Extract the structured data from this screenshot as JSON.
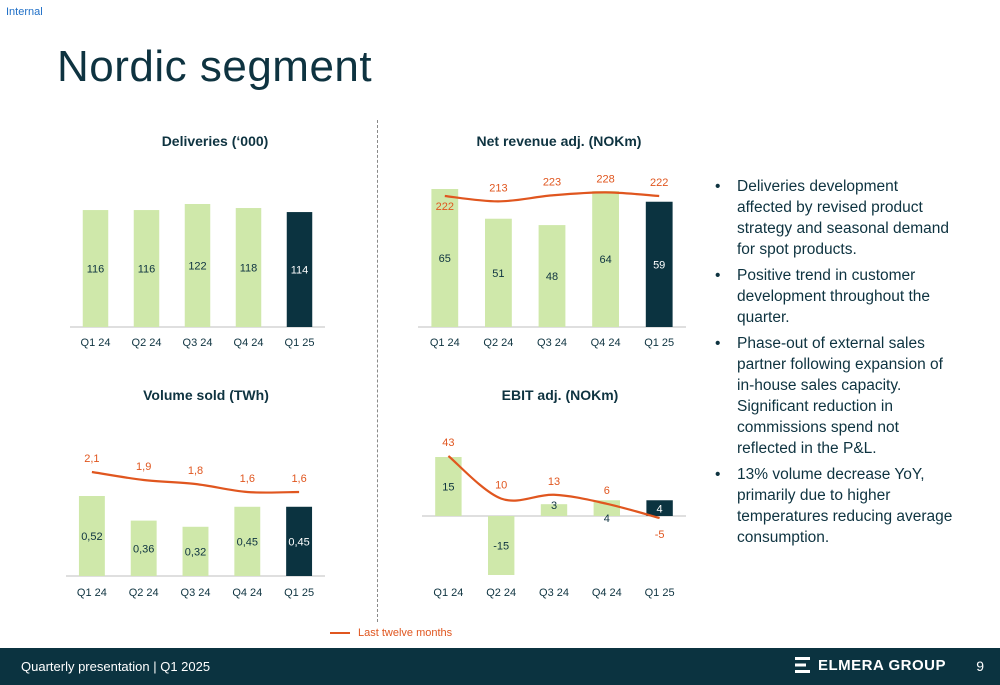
{
  "header": {
    "tag": "Internal",
    "title": "Nordic segment"
  },
  "colors": {
    "bar": "#cfe8aa",
    "bar_current": "#0b3340",
    "line": "#e0561f",
    "text": "#0e3340"
  },
  "legend": {
    "label": "Last twelve months"
  },
  "bullets": [
    "Deliveries development affected by revised product strategy and seasonal demand for spot products.",
    "Positive trend in customer development throughout the quarter.",
    "Phase-out of external sales partner following expansion of in-house sales capacity. Significant reduction in commissions spend not reflected in the P&L.",
    "13% volume decrease YoY, primarily due to higher temperatures reducing average consumption."
  ],
  "footer": {
    "left_text": "Quarterly presentation | Q1 2025",
    "brand": "ELMERA GROUP",
    "page": "9"
  },
  "chart_data": [
    {
      "type": "bar",
      "title": "Deliveries (‘000)",
      "categories": [
        "Q1 24",
        "Q2 24",
        "Q3 24",
        "Q4 24",
        "Q1 25"
      ],
      "series": [
        {
          "values": [
            116,
            116,
            122,
            118,
            114
          ],
          "labels": [
            "116",
            "116",
            "122",
            "118",
            "114"
          ]
        }
      ]
    },
    {
      "type": "bar",
      "title": "Net revenue adj. (NOKm)",
      "categories": [
        "Q1 24",
        "Q2 24",
        "Q3 24",
        "Q4 24",
        "Q1 25"
      ],
      "series": [
        {
          "values": [
            65,
            51,
            48,
            64,
            59
          ],
          "labels": [
            "65",
            "51",
            "48",
            "64",
            "59"
          ]
        },
        {
          "name": "Last twelve months",
          "type": "line",
          "values": [
            222,
            213,
            223,
            228,
            222
          ],
          "labels": [
            "222",
            "213",
            "223",
            "228",
            "222"
          ]
        }
      ]
    },
    {
      "type": "bar",
      "title": "Volume sold (TWh)",
      "categories": [
        "Q1 24",
        "Q2 24",
        "Q3 24",
        "Q4 24",
        "Q1 25"
      ],
      "series": [
        {
          "values": [
            0.52,
            0.36,
            0.32,
            0.45,
            0.45
          ],
          "labels": [
            "0,52",
            "0,36",
            "0,32",
            "0,45",
            "0,45"
          ]
        },
        {
          "name": "Last twelve months",
          "type": "line",
          "values": [
            2.1,
            1.9,
            1.8,
            1.6,
            1.6
          ],
          "labels": [
            "2,1",
            "1,9",
            "1,8",
            "1,6",
            "1,6"
          ]
        }
      ]
    },
    {
      "type": "bar",
      "title": "EBIT adj. (NOKm)",
      "categories": [
        "Q1 24",
        "Q2 24",
        "Q3 24",
        "Q4 24",
        "Q1 25"
      ],
      "series": [
        {
          "values": [
            15,
            -15,
            3,
            4,
            4
          ],
          "labels": [
            "15",
            "-15",
            "3",
            "4",
            "4"
          ]
        },
        {
          "name": "Last twelve months",
          "type": "line",
          "values": [
            43,
            10,
            13,
            6,
            -5
          ],
          "labels": [
            "43",
            "10",
            "13",
            "6",
            "-5"
          ]
        }
      ]
    }
  ]
}
